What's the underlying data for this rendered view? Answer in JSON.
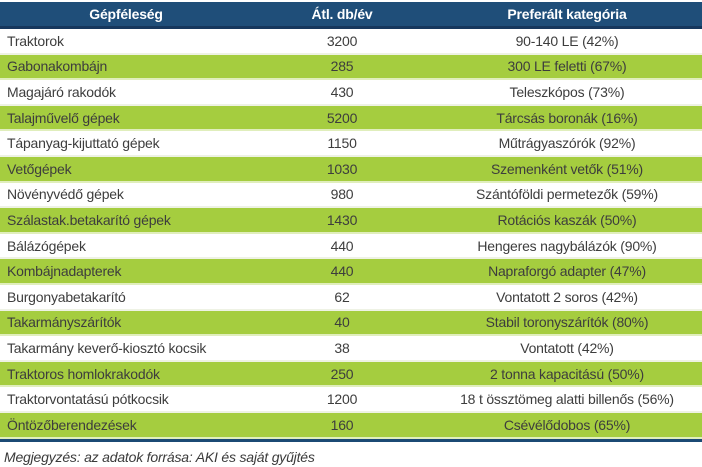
{
  "chart_data": {
    "type": "table",
    "columns": [
      "Gépféleség",
      "Átl. db/év",
      "Preferált kategória"
    ],
    "rows": [
      {
        "name": "Traktorok",
        "avg": "3200",
        "category": "90-140 LE (42%)"
      },
      {
        "name": "Gabonakombájn",
        "avg": "285",
        "category": "300 LE feletti (67%)"
      },
      {
        "name": "Magajáró rakodók",
        "avg": "430",
        "category": "Teleszkópos (73%)"
      },
      {
        "name": "Talajművelő gépek",
        "avg": "5200",
        "category": "Tárcsás boronák (16%)"
      },
      {
        "name": "Tápanyag-kijuttató gépek",
        "avg": "1150",
        "category": "Műtrágyaszórók (92%)"
      },
      {
        "name": "Vetőgépek",
        "avg": "1030",
        "category": "Szemenként vetők (51%)"
      },
      {
        "name": "Növényvédő gépek",
        "avg": "980",
        "category": "Szántóföldi permetezők (59%)"
      },
      {
        "name": "Szálastak.betakarító gépek",
        "avg": "1430",
        "category": "Rotációs kaszák (50%)"
      },
      {
        "name": "Bálázógépek",
        "avg": "440",
        "category": "Hengeres nagybálázók (90%)"
      },
      {
        "name": "Kombájnadapterek",
        "avg": "440",
        "category": "Napraforgó adapter (47%)"
      },
      {
        "name": "Burgonyabetakarító",
        "avg": "62",
        "category": "Vontatott 2 soros (42%)"
      },
      {
        "name": "Takarmányszárítók",
        "avg": "40",
        "category": "Stabil toronyszárítók (80%)"
      },
      {
        "name": "Takarmány keverő-kiosztó kocsik",
        "avg": "38",
        "category": "Vontatott (42%)"
      },
      {
        "name": "Traktoros homlokrakodók",
        "avg": "250",
        "category": "2 tonna kapacitású (50%)"
      },
      {
        "name": "Traktorvontatású pótkocsik",
        "avg": "1200",
        "category": "18 t össztömeg alatti billenős (56%)"
      },
      {
        "name": "Öntözőberendezések",
        "avg": "160",
        "category": "Csévélődobos (65%)"
      }
    ],
    "note": "Megjegyzés: az adatok forrása: AKI és saját gyűjtés",
    "layout_hints": {
      "striped": "white/green alternating starting with white",
      "header_position": "top"
    }
  },
  "colors": {
    "header_bg": "#1f4e79",
    "header_border": "#16375d",
    "row_green": "#a5cd3f",
    "row_white": "#ffffff",
    "text": "#3d3d3d",
    "header_text": "#ffffff",
    "table_bottom_border": "#1b4a74"
  }
}
